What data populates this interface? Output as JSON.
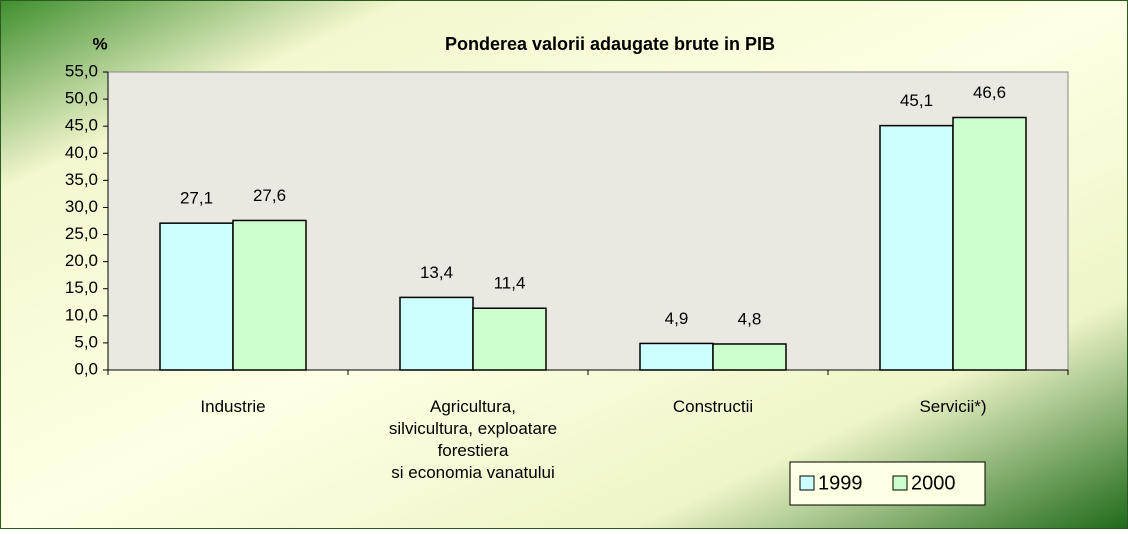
{
  "chart_data": {
    "type": "bar",
    "title": "Ponderea valorii adaugate brute in PIB",
    "y_label": "%",
    "categories": [
      "Industrie",
      "Agricultura,\nsilvicultura, exploatare\nforestiera\nsi economia vanatului",
      "Constructii",
      "Servicii*)"
    ],
    "series": [
      {
        "name": "1999",
        "color": "#ccffff",
        "values": [
          27.1,
          13.4,
          4.9,
          45.1
        ],
        "value_labels": [
          "27,1",
          "13,4",
          "4,9",
          "45,1"
        ]
      },
      {
        "name": "2000",
        "color": "#ccffcc",
        "values": [
          27.6,
          11.4,
          4.8,
          46.6
        ],
        "value_labels": [
          "27,6",
          "11,4",
          "4,8",
          "46,6"
        ]
      }
    ],
    "ylim": [
      0,
      55
    ],
    "yticks": [
      {
        "value": 0,
        "label": "0,0"
      },
      {
        "value": 5,
        "label": "5,0"
      },
      {
        "value": 10,
        "label": "10,0"
      },
      {
        "value": 15,
        "label": "15,0"
      },
      {
        "value": 20,
        "label": "20,0"
      },
      {
        "value": 25,
        "label": "25,0"
      },
      {
        "value": 30,
        "label": "30,0"
      },
      {
        "value": 35,
        "label": "35,0"
      },
      {
        "value": 40,
        "label": "40,0"
      },
      {
        "value": 45,
        "label": "45,0"
      },
      {
        "value": 50,
        "label": "50,0"
      },
      {
        "value": 55,
        "label": "55,0"
      }
    ],
    "legend": "bottom-right"
  }
}
